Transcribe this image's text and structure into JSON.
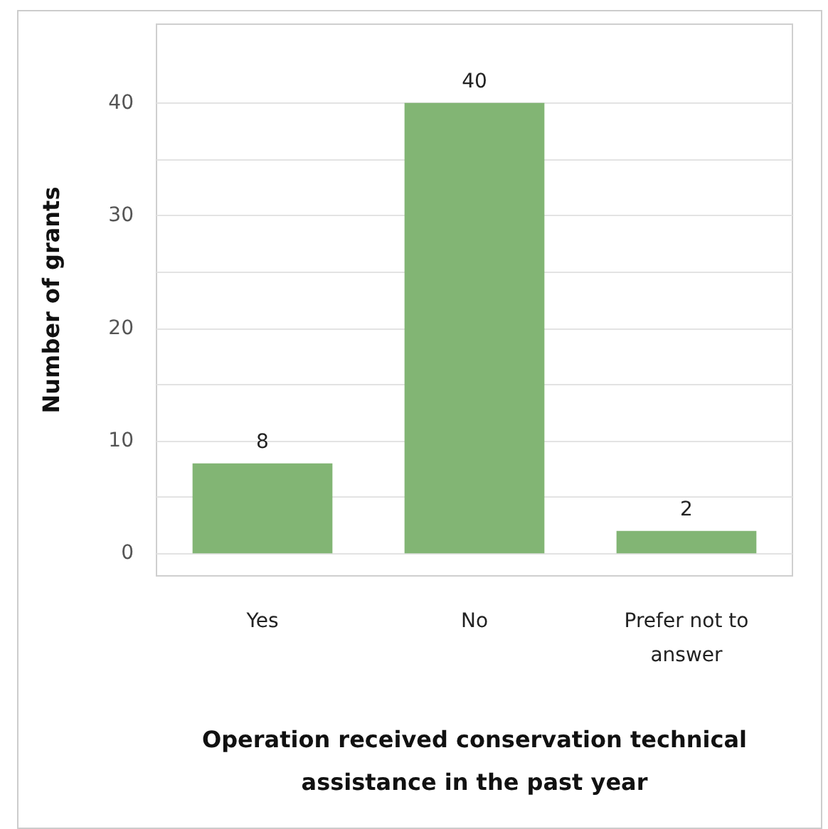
{
  "chart_data": {
    "type": "bar",
    "xlabel": "Operation received conservation technical assistance in the past year",
    "ylabel": "Number of grants",
    "categories": [
      "Yes",
      "No",
      "Prefer not to answer"
    ],
    "values": [
      8,
      40,
      2
    ],
    "color": "#82b574",
    "ylim": [
      -2,
      47
    ],
    "yticks": [
      0,
      {
        "value": 5,
        "label": null
      },
      10,
      {
        "value": 15,
        "label": null
      },
      20,
      {
        "value": 25,
        "label": null
      },
      30,
      {
        "value": 35,
        "label": null
      },
      40
    ],
    "grid": "y",
    "data_labels": true
  }
}
